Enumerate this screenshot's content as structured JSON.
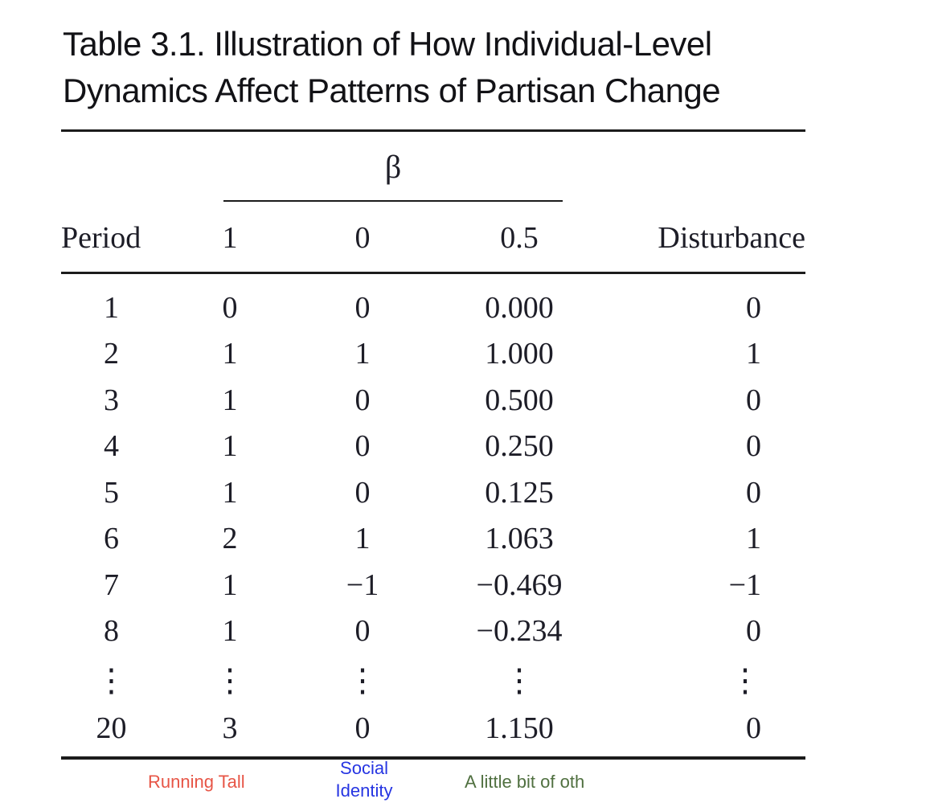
{
  "title": {
    "line1": "Table 3.1. Illustration of How Individual-Level",
    "line2": "Dynamics Affect Patterns of Partisan Change"
  },
  "table": {
    "spanner_label": "β",
    "columns": [
      "Period",
      "1",
      "0",
      "0.5",
      "Disturbance"
    ],
    "rows": [
      [
        "1",
        "0",
        "0",
        "0.000",
        "0"
      ],
      [
        "2",
        "1",
        "1",
        "1.000",
        "1"
      ],
      [
        "3",
        "1",
        "0",
        "0.500",
        "0"
      ],
      [
        "4",
        "1",
        "0",
        "0.250",
        "0"
      ],
      [
        "5",
        "1",
        "0",
        "0.125",
        "0"
      ],
      [
        "6",
        "2",
        "1",
        "1.063",
        "1"
      ],
      [
        "7",
        "1",
        "−1",
        "−0.469",
        "−1"
      ],
      [
        "8",
        "1",
        "0",
        "−0.234",
        "0"
      ],
      [
        "⋮",
        "⋮",
        "⋮",
        "⋮",
        "⋮"
      ],
      [
        "20",
        "3",
        "0",
        "1.150",
        "0"
      ]
    ]
  },
  "footnotes": [
    {
      "label": "Running Tall",
      "color": "#e75546"
    },
    {
      "label": "Social Identity",
      "color": "#2635e2"
    },
    {
      "label": "A little bit of oth",
      "color": "#507040"
    }
  ],
  "colors": {
    "text": "#1d1d27",
    "rule": "#1c1c1c",
    "background": "#ffffff"
  }
}
